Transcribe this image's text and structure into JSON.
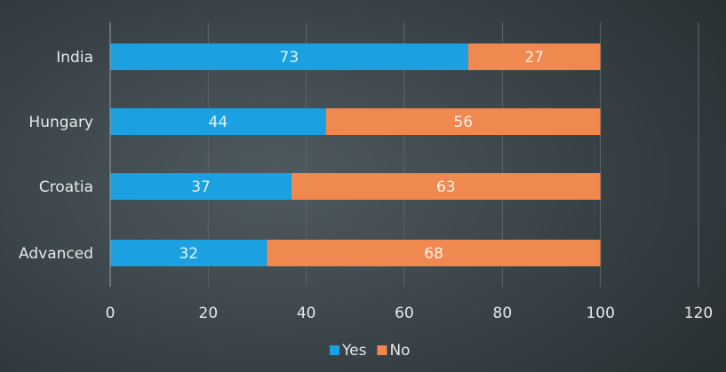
{
  "chart_data": {
    "type": "bar",
    "orientation": "horizontal",
    "stacked": true,
    "categories": [
      "India",
      "Hungary",
      "Croatia",
      "Advanced"
    ],
    "series": [
      {
        "name": "Yes",
        "values": [
          73,
          44,
          37,
          32
        ],
        "color": "#1ba1e2"
      },
      {
        "name": "No",
        "values": [
          27,
          56,
          63,
          68
        ],
        "color": "#f0894f"
      }
    ],
    "xlim": [
      0,
      120
    ],
    "xticks": [
      0,
      20,
      40,
      60,
      80,
      100,
      120
    ],
    "grid": "vertical",
    "legend": "bottom",
    "data_labels": true,
    "title": "",
    "xlabel": "",
    "ylabel": ""
  }
}
